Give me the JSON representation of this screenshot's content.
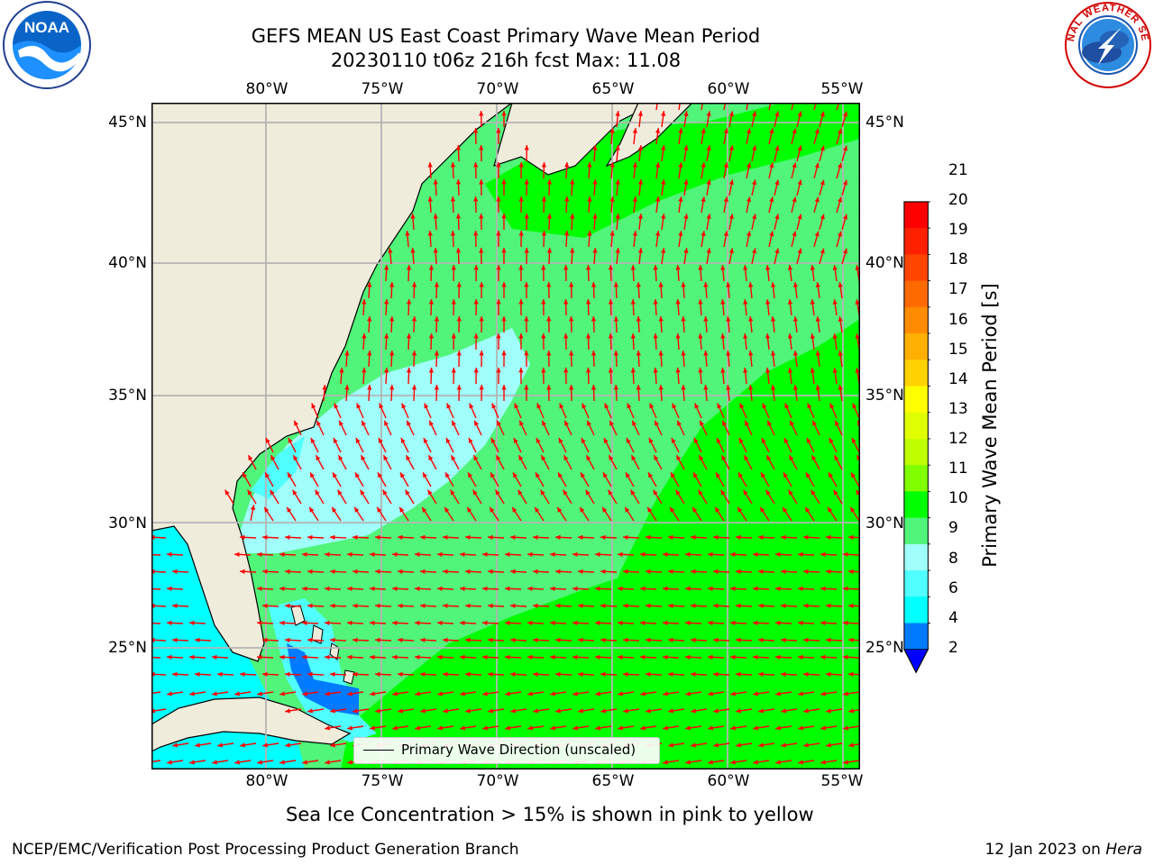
{
  "header": {
    "title_line1": "GEFS MEAN US East Coast Primary Wave Mean Period",
    "title_line2": "20230110 t06z 216h fcst   Max: 11.08"
  },
  "map": {
    "lon_labels": [
      "80°W",
      "75°W",
      "70°W",
      "65°W",
      "60°W",
      "55°W"
    ],
    "lat_labels": [
      "45°N",
      "40°N",
      "35°N",
      "30°N",
      "25°N"
    ],
    "land_color": "#efecdc",
    "grid_color": "#b4b4b4",
    "arrow_color": "#ff0000",
    "legend_label": "Primary Wave Direction (unscaled)"
  },
  "colorbar": {
    "title": "Primary Wave Mean Period [s]",
    "tick_labels": [
      "21",
      "20",
      "19",
      "18",
      "17",
      "16",
      "15",
      "14",
      "13",
      "12",
      "11",
      "10",
      "9",
      "8",
      "6",
      "4",
      "2"
    ],
    "colors": [
      "#ff0000",
      "#ff2000",
      "#ff4500",
      "#ff6a00",
      "#ff8c00",
      "#ffb000",
      "#ffd200",
      "#ffff00",
      "#e0ff00",
      "#c0ff00",
      "#80ff00",
      "#00ff00",
      "#50f57a",
      "#a0fffa",
      "#50ffff",
      "#00ffff",
      "#007bff"
    ],
    "under_color": "#0000ff"
  },
  "footer": {
    "note": "Sea Ice Concentration > 15% is shown in pink to yellow",
    "credit_left": "NCEP/EMC/Verification Post Processing Product Generation Branch",
    "date_text": "12 Jan 2023 on",
    "machine": "Hera"
  },
  "logos": {
    "noaa_text": "NOAA",
    "nws_text": "NATIONAL WEATHER SERVICE"
  }
}
